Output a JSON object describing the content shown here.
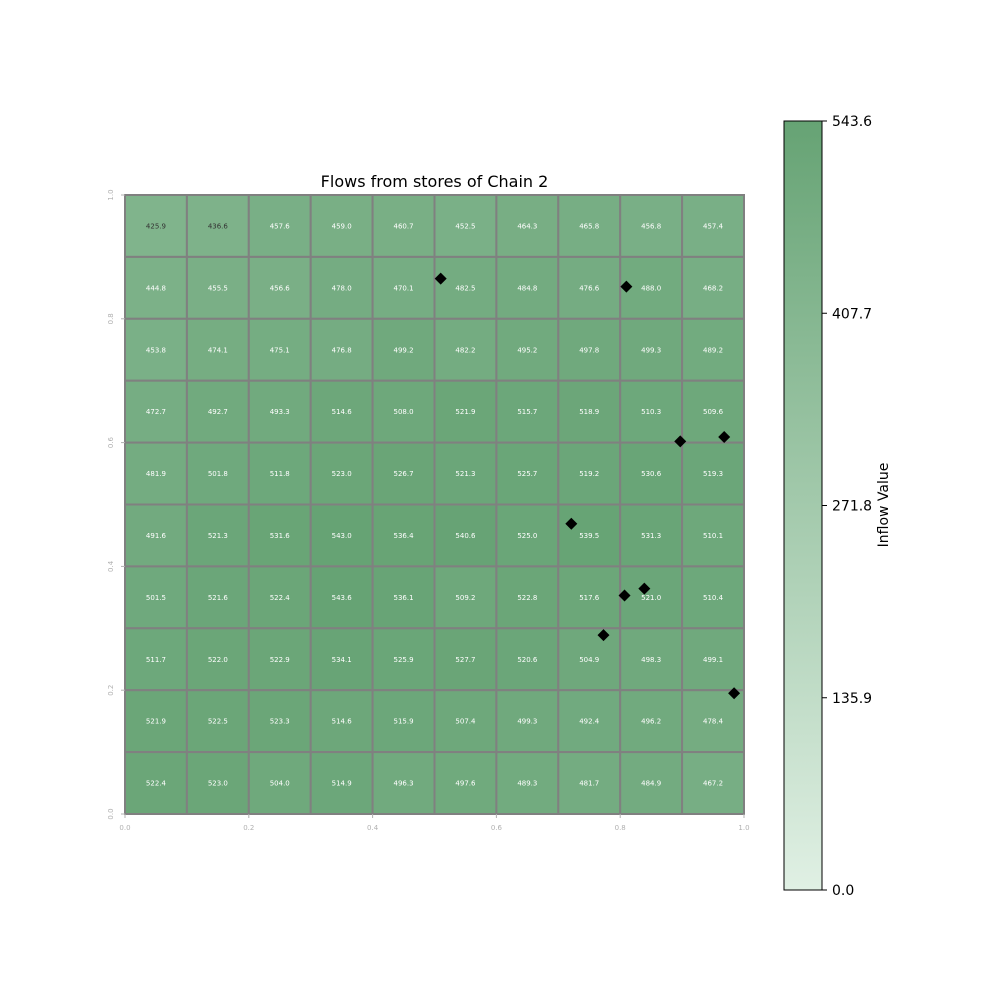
{
  "chart_data": {
    "type": "heatmap",
    "title": "Flows from stores of Chain 2",
    "xlim": [
      0,
      1
    ],
    "ylim": [
      0,
      1
    ],
    "x_ticks": [
      "0.0",
      "0.2",
      "0.4",
      "0.6",
      "0.8",
      "1.0"
    ],
    "y_ticks": [
      "0.0",
      "0.2",
      "0.4",
      "0.6",
      "0.8",
      "1.0"
    ],
    "grid_values_top_to_bottom": [
      [
        "425.9",
        "436.6",
        "457.6",
        "459.0",
        "460.7",
        "452.5",
        "464.3",
        "465.8",
        "456.8",
        "457.4"
      ],
      [
        "444.8",
        "455.5",
        "456.6",
        "478.0",
        "470.1",
        "482.5",
        "484.8",
        "476.6",
        "488.0",
        "468.2"
      ],
      [
        "453.8",
        "474.1",
        "475.1",
        "476.8",
        "499.2",
        "482.2",
        "495.2",
        "497.8",
        "499.3",
        "489.2"
      ],
      [
        "472.7",
        "492.7",
        "493.3",
        "514.6",
        "508.0",
        "521.9",
        "515.7",
        "518.9",
        "510.3",
        "509.6"
      ],
      [
        "481.9",
        "501.8",
        "511.8",
        "523.0",
        "526.7",
        "521.3",
        "525.7",
        "519.2",
        "530.6",
        "519.3"
      ],
      [
        "491.6",
        "521.3",
        "531.6",
        "543.0",
        "536.4",
        "540.6",
        "525.0",
        "539.5",
        "531.3",
        "510.1"
      ],
      [
        "501.5",
        "521.6",
        "522.4",
        "543.6",
        "536.1",
        "509.2",
        "522.8",
        "517.6",
        "521.0",
        "510.4"
      ],
      [
        "511.7",
        "522.0",
        "522.9",
        "534.1",
        "525.9",
        "527.7",
        "520.6",
        "504.9",
        "498.3",
        "499.1"
      ],
      [
        "521.9",
        "522.5",
        "523.3",
        "514.6",
        "515.9",
        "507.4",
        "499.3",
        "492.4",
        "496.2",
        "478.4"
      ],
      [
        "522.4",
        "523.0",
        "504.0",
        "514.9",
        "496.3",
        "497.6",
        "489.3",
        "481.7",
        "484.9",
        "467.2"
      ]
    ],
    "stores": [
      {
        "x": 0.51,
        "y": 0.865
      },
      {
        "x": 0.81,
        "y": 0.852
      },
      {
        "x": 0.897,
        "y": 0.602
      },
      {
        "x": 0.968,
        "y": 0.609
      },
      {
        "x": 0.721,
        "y": 0.469
      },
      {
        "x": 0.839,
        "y": 0.364
      },
      {
        "x": 0.807,
        "y": 0.353
      },
      {
        "x": 0.773,
        "y": 0.289
      },
      {
        "x": 0.984,
        "y": 0.195
      }
    ],
    "colorbar": {
      "label": "Inflow Value",
      "min": 0.0,
      "max": 543.6,
      "ticks": [
        "0.0",
        "135.9",
        "271.8",
        "407.7",
        "543.6"
      ]
    },
    "colors": {
      "low": "#e0f0e4",
      "high": "#66a374",
      "cell_border": "#808080",
      "marker": "#000000",
      "axis_tick": "#b0b0b0"
    }
  }
}
